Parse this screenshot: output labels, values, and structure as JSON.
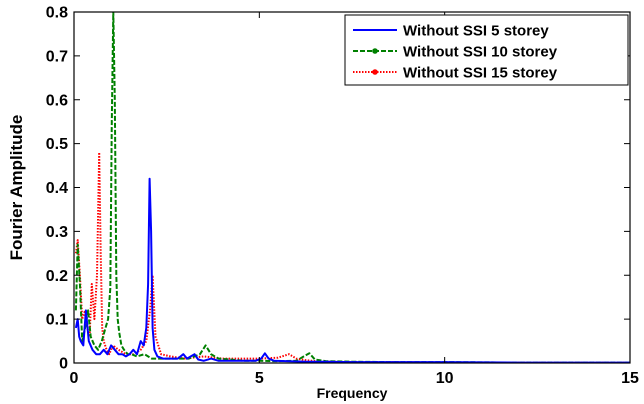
{
  "chart_data": {
    "type": "line",
    "title": "",
    "xlabel": "Frequency",
    "ylabel": "Fourier Amplitude",
    "xlim": [
      0,
      15
    ],
    "ylim": [
      0,
      0.8
    ],
    "xticks": [
      0,
      5,
      10,
      15
    ],
    "yticks": [
      0,
      0.1,
      0.2,
      0.3,
      0.4,
      0.5,
      0.6,
      0.7,
      0.8
    ],
    "grid": false,
    "legend_position": "top-right",
    "series": [
      {
        "name": "Without SSI 5 storey",
        "color": "#0000ff",
        "line_style": "solid",
        "marker": "none",
        "x": [
          0.05,
          0.1,
          0.14,
          0.18,
          0.25,
          0.32,
          0.4,
          0.5,
          0.6,
          0.7,
          0.8,
          0.9,
          1.0,
          1.1,
          1.2,
          1.3,
          1.4,
          1.5,
          1.6,
          1.7,
          1.8,
          1.88,
          1.95,
          2.0,
          2.04,
          2.08,
          2.12,
          2.17,
          2.25,
          2.4,
          2.6,
          2.8,
          2.95,
          3.05,
          3.15,
          3.25,
          3.35,
          3.5,
          3.7,
          3.9,
          4.1,
          4.5,
          4.9,
          5.05,
          5.15,
          5.25,
          5.4,
          5.8,
          6.3,
          6.8,
          7.5,
          8.5,
          10,
          12,
          14,
          15
        ],
        "y": [
          0.08,
          0.1,
          0.06,
          0.05,
          0.04,
          0.12,
          0.05,
          0.03,
          0.02,
          0.02,
          0.03,
          0.02,
          0.04,
          0.03,
          0.02,
          0.02,
          0.015,
          0.02,
          0.03,
          0.02,
          0.05,
          0.04,
          0.08,
          0.18,
          0.42,
          0.3,
          0.08,
          0.03,
          0.015,
          0.01,
          0.01,
          0.01,
          0.02,
          0.01,
          0.015,
          0.02,
          0.008,
          0.005,
          0.01,
          0.005,
          0.005,
          0.005,
          0.005,
          0.01,
          0.022,
          0.01,
          0.005,
          0.004,
          0.003,
          0.003,
          0.002,
          0.002,
          0.002,
          0.001,
          0.001,
          0.001
        ]
      },
      {
        "name": "Without SSI 10 storey",
        "color": "#008000",
        "line_style": "dashed",
        "marker": "dot",
        "x": [
          0.05,
          0.1,
          0.16,
          0.22,
          0.3,
          0.38,
          0.45,
          0.55,
          0.65,
          0.75,
          0.85,
          0.92,
          0.98,
          1.02,
          1.06,
          1.1,
          1.14,
          1.18,
          1.22,
          1.28,
          1.35,
          1.45,
          1.55,
          1.7,
          1.9,
          2.1,
          2.3,
          2.5,
          2.8,
          3.1,
          3.4,
          3.55,
          3.7,
          3.9,
          4.2,
          4.6,
          5.0,
          5.5,
          6.0,
          6.2,
          6.35,
          6.5,
          6.8,
          7.5,
          8.5,
          10,
          12,
          14,
          15
        ],
        "y": [
          0.12,
          0.27,
          0.18,
          0.05,
          0.08,
          0.12,
          0.06,
          0.04,
          0.03,
          0.05,
          0.08,
          0.1,
          0.17,
          0.55,
          0.8,
          0.6,
          0.2,
          0.1,
          0.07,
          0.04,
          0.03,
          0.02,
          0.02,
          0.015,
          0.02,
          0.01,
          0.01,
          0.01,
          0.01,
          0.01,
          0.02,
          0.04,
          0.02,
          0.01,
          0.008,
          0.005,
          0.005,
          0.004,
          0.005,
          0.015,
          0.022,
          0.008,
          0.004,
          0.003,
          0.002,
          0.002,
          0.001,
          0.001,
          0.001
        ]
      },
      {
        "name": "Without SSI 15 storey",
        "color": "#ff0000",
        "line_style": "dotted",
        "marker": "dot",
        "x": [
          0.05,
          0.1,
          0.16,
          0.22,
          0.3,
          0.36,
          0.42,
          0.48,
          0.55,
          0.62,
          0.68,
          0.72,
          0.76,
          0.8,
          0.88,
          0.95,
          1.05,
          1.2,
          1.4,
          1.6,
          1.8,
          1.95,
          2.05,
          2.12,
          2.2,
          2.35,
          2.6,
          3.0,
          3.5,
          4.0,
          4.5,
          5.0,
          5.5,
          5.8,
          6.0,
          6.3,
          6.7,
          7.5,
          8.5,
          10,
          12,
          14,
          15
        ],
        "y": [
          0.25,
          0.28,
          0.2,
          0.1,
          0.12,
          0.08,
          0.06,
          0.18,
          0.1,
          0.2,
          0.48,
          0.25,
          0.08,
          0.05,
          0.03,
          0.02,
          0.04,
          0.03,
          0.02,
          0.02,
          0.03,
          0.05,
          0.12,
          0.2,
          0.06,
          0.02,
          0.015,
          0.01,
          0.015,
          0.01,
          0.01,
          0.01,
          0.012,
          0.02,
          0.01,
          0.006,
          0.003,
          0.002,
          0.002,
          0.001,
          0.001,
          0.001,
          0.001
        ]
      }
    ]
  }
}
